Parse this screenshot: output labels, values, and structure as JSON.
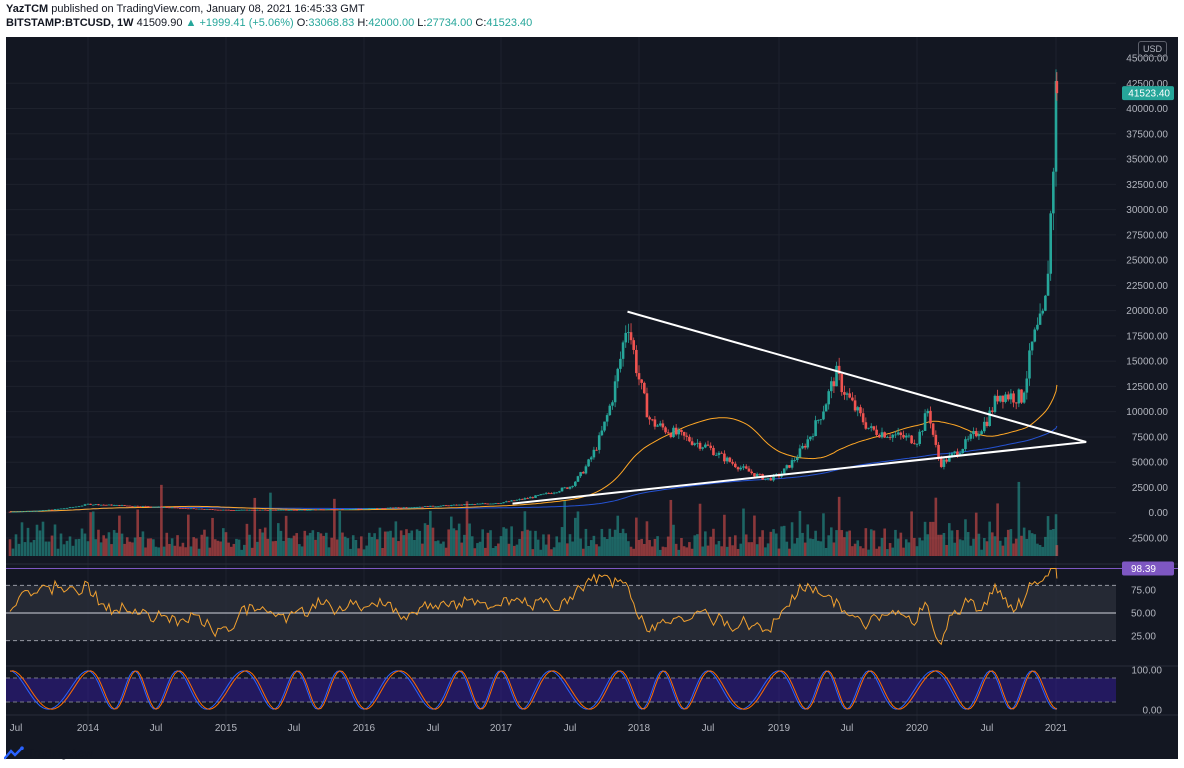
{
  "header": {
    "user": "YazTCM",
    "published": "published on TradingView.com, January 08, 2021 16:45:33 GMT",
    "symbol": "BITSTAMP:BTCUSD, 1W",
    "last": "41509.90",
    "change": "▲ +1999.41 (+5.06%)",
    "o_label": "O:",
    "o_val": "33068.83",
    "h_label": "H:",
    "h_val": "42000.00",
    "l_label": "L:",
    "l_val": "27734.00",
    "c_label": "C:",
    "c_val": "41523.40"
  },
  "currency_label": "USD",
  "brand": "TradingView",
  "price_axis": [
    "45000.00",
    "42500.00",
    "40000.00",
    "37500.00",
    "35000.00",
    "32500.00",
    "30000.00",
    "27500.00",
    "25000.00",
    "22500.00",
    "20000.00",
    "17500.00",
    "15000.00",
    "12500.00",
    "10000.00",
    "7500.00",
    "5000.00",
    "2500.00",
    "0.00",
    "-2500.00"
  ],
  "last_price_tag": "41523.40",
  "rsi_axis": [
    "75.00",
    "50.00",
    "25.00"
  ],
  "rsi_last_tag": "98.39",
  "stoch_axis": [
    "100.00",
    "0.00"
  ],
  "time_axis": [
    "Jul",
    "2014",
    "Jul",
    "2015",
    "Jul",
    "2016",
    "Jul",
    "2017",
    "Jul",
    "2018",
    "Jul",
    "2019",
    "Jul",
    "2020",
    "Jul",
    "2021"
  ],
  "colors": {
    "background": "#131722",
    "up": "#26a69a",
    "down": "#ef5350",
    "ma_slow": "#2962ff",
    "ma_fast": "#ffa726",
    "rsi_line": "#f0a030",
    "rsi_tag": "#7e57c2",
    "stoch_k": "#2962ff",
    "stoch_d": "#ff6d00",
    "trendline": "#ffffff"
  },
  "chart_data": {
    "type": "candlestick",
    "symbol": "BITSTAMP:BTCUSD",
    "interval": "1W",
    "x": [
      "2013-07",
      "2014-01",
      "2014-07",
      "2015-01",
      "2015-07",
      "2016-01",
      "2016-07",
      "2017-01",
      "2017-07",
      "2017-12",
      "2018-02",
      "2018-07",
      "2018-12",
      "2019-01",
      "2019-06",
      "2019-09",
      "2020-01",
      "2020-02",
      "2020-03",
      "2020-07",
      "2020-08",
      "2020-10",
      "2020-11",
      "2020-12",
      "2021-01"
    ],
    "y": [
      100,
      850,
      600,
      280,
      280,
      400,
      650,
      1000,
      2600,
      19500,
      9000,
      6500,
      3300,
      3700,
      13800,
      8200,
      7200,
      10400,
      4800,
      9200,
      11800,
      11400,
      17000,
      19500,
      41523
    ],
    "ylim": [
      -3300,
      46500
    ],
    "trendlines": [
      {
        "from": [
          "2017-12",
          19900
        ],
        "to": [
          "2021-09",
          7000
        ]
      },
      {
        "from": [
          "2017-02",
          900
        ],
        "to": [
          "2021-09",
          7000
        ]
      }
    ],
    "indicators": [
      "RSI",
      "Stochastic RSI",
      "Moving averages",
      "Volume"
    ]
  }
}
